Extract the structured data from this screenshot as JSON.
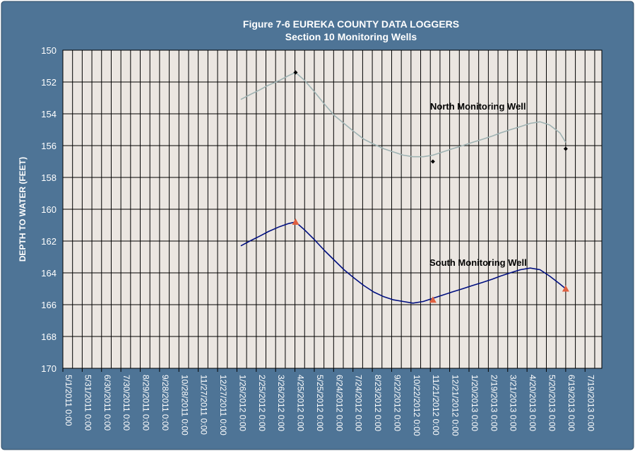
{
  "chart_data": {
    "type": "line",
    "title": "Figure 7-6 EUREKA COUNTY DATA LOGGERS",
    "subtitle": "Section 10 Monitoring Wells",
    "ylabel": "DEPTH TO WATER (FEET)",
    "xlabel": "",
    "y_inverted": true,
    "ylim": [
      150,
      170
    ],
    "yticks": [
      150,
      152,
      154,
      156,
      158,
      160,
      162,
      164,
      166,
      168,
      170
    ],
    "xlim": [
      "2011-05-01",
      "2013-08-14"
    ],
    "xtick_labels": [
      "5/1/2011 0:00",
      "5/31/2011 0:00",
      "6/30/2011 0:00",
      "7/30/2011 0:00",
      "8/29/2011 0:00",
      "9/28/2011 0:00",
      "10/28/2011 0:00",
      "11/27/2011 0:00",
      "12/27/2011 0:00",
      "1/26/2012 0:00",
      "2/25/2012 0:00",
      "3/26/2012 0:00",
      "4/25/2012 0:00",
      "5/25/2012 0:00",
      "6/24/2012 0:00",
      "7/24/2012 0:00",
      "8/23/2012 0:00",
      "9/22/2012 0:00",
      "10/22/2012 0:00",
      "11/21/2012 0:00",
      "12/21/2012 0:00",
      "1/20/2013 0:00",
      "2/19/2013 0:00",
      "3/21/2013 0:00",
      "4/20/2013 0:00",
      "5/20/2013 0:00",
      "6/19/2013 0:00",
      "7/19/2013 0:00"
    ],
    "grid": true,
    "annotations": [
      "North Monitoring Well",
      "South Monitoring Well"
    ],
    "series": [
      {
        "name": "North Monitoring Well",
        "color": "#9fb3b3",
        "x": [
          "2012-02-01",
          "2012-02-15",
          "2012-03-01",
          "2012-03-15",
          "2012-04-01",
          "2012-04-15",
          "2012-04-26",
          "2012-05-10",
          "2012-05-25",
          "2012-06-10",
          "2012-06-25",
          "2012-07-10",
          "2012-07-25",
          "2012-08-10",
          "2012-08-25",
          "2012-09-10",
          "2012-09-25",
          "2012-10-10",
          "2012-10-25",
          "2012-11-10",
          "2012-11-25",
          "2012-12-10",
          "2012-12-25",
          "2013-01-10",
          "2013-01-25",
          "2013-02-10",
          "2013-02-25",
          "2013-03-10",
          "2013-03-25",
          "2013-04-10",
          "2013-04-25",
          "2013-05-10",
          "2013-05-25",
          "2013-06-10",
          "2013-06-19"
        ],
        "values": [
          153.1,
          152.8,
          152.5,
          152.2,
          151.9,
          151.6,
          151.4,
          151.9,
          152.6,
          153.4,
          154.1,
          154.6,
          155.1,
          155.6,
          155.9,
          156.2,
          156.4,
          156.6,
          156.7,
          156.7,
          156.6,
          156.4,
          156.2,
          156.0,
          155.8,
          155.6,
          155.4,
          155.2,
          155.0,
          154.8,
          154.6,
          154.5,
          154.7,
          155.2,
          155.8
        ]
      },
      {
        "name": "South Monitoring Well",
        "color": "#000f80",
        "x": [
          "2012-02-01",
          "2012-02-15",
          "2012-03-01",
          "2012-03-15",
          "2012-04-01",
          "2012-04-15",
          "2012-04-26",
          "2012-05-10",
          "2012-05-25",
          "2012-06-10",
          "2012-06-25",
          "2012-07-10",
          "2012-07-25",
          "2012-08-10",
          "2012-08-25",
          "2012-09-10",
          "2012-09-25",
          "2012-10-10",
          "2012-10-25",
          "2012-11-10",
          "2012-11-25",
          "2012-12-10",
          "2012-12-25",
          "2013-01-10",
          "2013-01-25",
          "2013-02-10",
          "2013-02-25",
          "2013-03-10",
          "2013-03-25",
          "2013-04-10",
          "2013-04-25",
          "2013-05-10",
          "2013-05-25",
          "2013-06-10",
          "2013-06-19"
        ],
        "values": [
          162.3,
          162.0,
          161.7,
          161.4,
          161.1,
          160.9,
          160.8,
          161.3,
          161.9,
          162.6,
          163.2,
          163.8,
          164.3,
          164.8,
          165.2,
          165.5,
          165.7,
          165.8,
          165.9,
          165.8,
          165.6,
          165.4,
          165.2,
          165.0,
          164.8,
          164.6,
          164.4,
          164.2,
          164.0,
          163.8,
          163.7,
          163.8,
          164.2,
          164.7,
          165.0
        ]
      }
    ],
    "manual_readings": [
      {
        "name": "North Monitoring Well",
        "marker": "diamond",
        "color": "#000000",
        "x": [
          "2012-04-26",
          "2012-11-25",
          "2013-06-19"
        ],
        "values": [
          151.4,
          157.0,
          156.2
        ]
      },
      {
        "name": "South Monitoring Well",
        "marker": "triangle",
        "color": "#e06040",
        "x": [
          "2012-04-26",
          "2012-11-25",
          "2013-06-19"
        ],
        "values": [
          160.8,
          165.7,
          165.0
        ]
      }
    ]
  }
}
